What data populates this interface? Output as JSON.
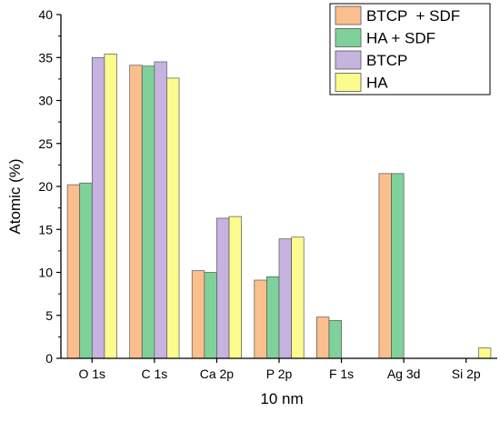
{
  "chart_data": {
    "type": "bar",
    "title": "",
    "xlabel": "10 nm",
    "ylabel": "Atomic (%)",
    "ylim": [
      0,
      40
    ],
    "yticks": [
      0,
      5,
      10,
      15,
      20,
      25,
      30,
      35,
      40
    ],
    "categories": [
      "O 1s",
      "C 1s",
      "Ca 2p",
      "P 2p",
      "F 1s",
      "Ag 3d",
      "Si 2p"
    ],
    "legend_position": "top-right",
    "grid": false,
    "series": [
      {
        "name": "BTCP  + SDF",
        "color": "#fbbf8d",
        "values": [
          20.2,
          34.1,
          10.2,
          9.1,
          4.8,
          21.5,
          0
        ]
      },
      {
        "name": "HA + SDF",
        "color": "#7fd19a",
        "values": [
          20.4,
          34.0,
          10.0,
          9.5,
          4.4,
          21.5,
          0
        ]
      },
      {
        "name": "BTCP",
        "color": "#c6b3e0",
        "values": [
          35.0,
          34.5,
          16.3,
          13.9,
          0,
          0,
          0
        ]
      },
      {
        "name": "HA",
        "color": "#fbfb8e",
        "values": [
          35.4,
          32.6,
          16.5,
          14.1,
          0,
          0,
          1.2
        ]
      }
    ]
  }
}
